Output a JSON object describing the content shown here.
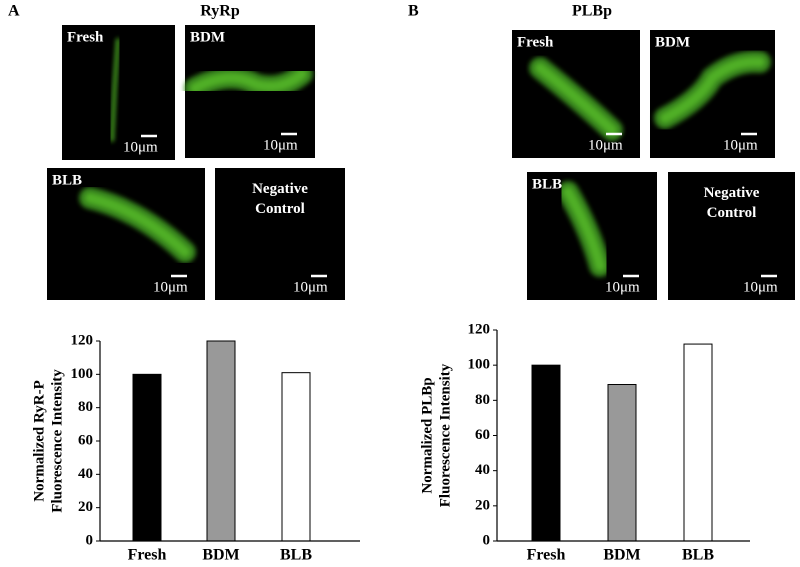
{
  "panels": [
    {
      "letter": "A",
      "title": "RyRp",
      "images": [
        {
          "label": "Fresh",
          "scale": "10μm"
        },
        {
          "label": "BDM",
          "scale": "10μm"
        },
        {
          "label": "BLB",
          "scale": "10μm"
        },
        {
          "label": [
            "Negative",
            "Control"
          ],
          "scale": "10μm"
        }
      ]
    },
    {
      "letter": "B",
      "title": "PLBp",
      "images": [
        {
          "label": "Fresh",
          "scale": "10μm"
        },
        {
          "label": "BDM",
          "scale": "10μm"
        },
        {
          "label": "BLB",
          "scale": "10μm"
        },
        {
          "label": [
            "Negative",
            "Control"
          ],
          "scale": "10μm"
        }
      ]
    }
  ],
  "chart_data": [
    {
      "type": "bar",
      "ylabel": [
        "Normalized RyR-P",
        "Fluorescence Intensity"
      ],
      "categories": [
        "Fresh",
        "BDM",
        "BLB"
      ],
      "values": [
        100,
        120,
        101
      ],
      "colors": [
        "#000000",
        "#999999",
        "#ffffff"
      ],
      "ylim": [
        0,
        120
      ],
      "yticks": [
        0,
        20,
        40,
        60,
        80,
        100,
        120
      ]
    },
    {
      "type": "bar",
      "ylabel": [
        "Normalized PLBp",
        "Fluorescence Intensity"
      ],
      "categories": [
        "Fresh",
        "BDM",
        "BLB"
      ],
      "values": [
        100,
        89,
        112
      ],
      "colors": [
        "#000000",
        "#999999",
        "#ffffff"
      ],
      "ylim": [
        0,
        120
      ],
      "yticks": [
        0,
        20,
        40,
        60,
        80,
        100,
        120
      ]
    }
  ]
}
